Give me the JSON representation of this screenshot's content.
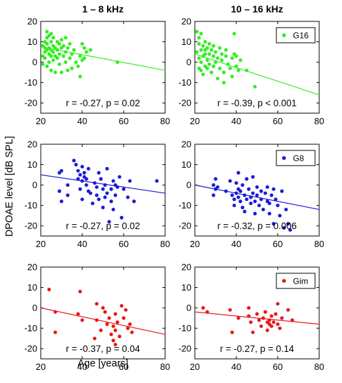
{
  "figure": {
    "ylabel": "DPOAE level [dB SPL]",
    "xlabel": "Age [years]",
    "column_titles": [
      "1 – 8 kHz",
      "10 – 16 kHz"
    ]
  },
  "chart_data": [
    {
      "type": "scatter",
      "row": 0,
      "col": 0,
      "xlim": [
        20,
        80
      ],
      "ylim": [
        -25,
        20
      ],
      "xticks": [
        20,
        40,
        60,
        80
      ],
      "yticks": [
        -20,
        -10,
        0,
        10,
        20
      ],
      "color": "#33ee22",
      "group": "G16",
      "stats": "r = -0.27, p = 0.02",
      "fit": {
        "x": [
          20,
          80
        ],
        "y": [
          7.5,
          -4
        ]
      },
      "series": [
        {
          "name": "G16",
          "x": [
            21,
            21,
            21,
            22,
            22,
            22,
            22,
            23,
            23,
            23,
            23,
            23,
            24,
            24,
            24,
            24,
            25,
            25,
            25,
            25,
            25,
            26,
            26,
            26,
            26,
            27,
            27,
            27,
            28,
            28,
            28,
            29,
            29,
            29,
            30,
            30,
            30,
            31,
            31,
            32,
            32,
            32,
            33,
            33,
            34,
            34,
            35,
            35,
            36,
            37,
            38,
            39,
            39,
            40,
            40,
            41,
            41,
            42,
            44,
            57
          ],
          "y": [
            3,
            8,
            -1,
            7,
            2,
            10,
            5,
            15,
            6,
            -2,
            12,
            9,
            4,
            13,
            0,
            7,
            10,
            3,
            6,
            -4,
            14,
            5,
            1,
            8,
            12,
            7,
            -5,
            3,
            10,
            2,
            6,
            9,
            -1,
            4,
            -5,
            11,
            7,
            3,
            8,
            0,
            12,
            5,
            -4,
            7,
            2,
            9,
            4,
            -3,
            6,
            0,
            -2,
            -7,
            3,
            9,
            1,
            2,
            7,
            5,
            6,
            0
          ]
        }
      ]
    },
    {
      "type": "scatter",
      "row": 0,
      "col": 1,
      "xlim": [
        20,
        80
      ],
      "ylim": [
        -25,
        20
      ],
      "xticks": [
        20,
        40,
        60,
        80
      ],
      "yticks": [
        -20,
        -10,
        0,
        10,
        20
      ],
      "color": "#33ee22",
      "group": "G16",
      "legend": {
        "label": "G16",
        "position": "top-right"
      },
      "stats": "r = -0.39, p < 0.001",
      "fit": {
        "x": [
          20,
          80
        ],
        "y": [
          4,
          -16
        ]
      },
      "series": [
        {
          "name": "G16",
          "x": [
            21,
            21,
            22,
            22,
            22,
            22,
            23,
            23,
            23,
            23,
            24,
            24,
            24,
            25,
            25,
            25,
            25,
            26,
            26,
            26,
            27,
            27,
            27,
            28,
            28,
            29,
            29,
            29,
            30,
            30,
            31,
            31,
            32,
            32,
            33,
            33,
            34,
            34,
            35,
            35,
            36,
            37,
            38,
            38,
            39,
            39,
            40,
            40,
            41,
            42,
            45,
            49
          ],
          "y": [
            15,
            5,
            9,
            2,
            -3,
            12,
            14,
            6,
            0,
            -4,
            8,
            3,
            -6,
            10,
            4,
            -2,
            6,
            7,
            1,
            -3,
            9,
            4,
            -1,
            6,
            -5,
            3,
            8,
            -2,
            5,
            0,
            2,
            -8,
            7,
            -3,
            1,
            4,
            -5,
            -10,
            3,
            6,
            -1,
            -3,
            -7,
            2,
            14,
            4,
            -2,
            3,
            -4,
            1,
            -4,
            -12
          ]
        }
      ]
    },
    {
      "type": "scatter",
      "row": 1,
      "col": 0,
      "xlim": [
        20,
        80
      ],
      "ylim": [
        -25,
        20
      ],
      "xticks": [
        20,
        40,
        60,
        80
      ],
      "yticks": [
        -20,
        -10,
        0,
        10,
        20
      ],
      "color": "#1a1adb",
      "group": "G8",
      "stats": "r = -0.27, p = 0.02",
      "fit": {
        "x": [
          20,
          80
        ],
        "y": [
          5,
          -4
        ]
      },
      "series": [
        {
          "name": "G8",
          "x": [
            29,
            29,
            30,
            30,
            33,
            33,
            36,
            37,
            38,
            38,
            39,
            39,
            40,
            40,
            40,
            41,
            41,
            42,
            42,
            43,
            43,
            44,
            45,
            46,
            47,
            47,
            48,
            48,
            49,
            50,
            50,
            51,
            51,
            52,
            52,
            53,
            54,
            54,
            55,
            55,
            56,
            56,
            57,
            58,
            59,
            60,
            62,
            63,
            65,
            76
          ],
          "y": [
            6,
            -3,
            7,
            -8,
            0,
            -5,
            12,
            10,
            7,
            3,
            5,
            -2,
            2,
            9,
            -7,
            4,
            6,
            3,
            0,
            -3,
            8,
            -4,
            -9,
            1,
            -5,
            -1,
            6,
            -7,
            3,
            -2,
            -11,
            0,
            -6,
            -4,
            8,
            -18,
            -2,
            -8,
            2,
            -12,
            0,
            -5,
            -1,
            4,
            -16,
            -2,
            -6,
            2,
            -8,
            2
          ]
        }
      ]
    },
    {
      "type": "scatter",
      "row": 1,
      "col": 1,
      "xlim": [
        20,
        80
      ],
      "ylim": [
        -25,
        20
      ],
      "xticks": [
        20,
        40,
        60,
        80
      ],
      "yticks": [
        -20,
        -10,
        0,
        10,
        20
      ],
      "color": "#1a1adb",
      "group": "G8",
      "legend": {
        "label": "G8",
        "position": "top-right"
      },
      "stats": "r = -0.32, p = 0.006",
      "fit": {
        "x": [
          20,
          80
        ],
        "y": [
          0,
          -12
        ]
      },
      "series": [
        {
          "name": "G8",
          "x": [
            29,
            29,
            30,
            30,
            31,
            35,
            37,
            38,
            39,
            39,
            40,
            40,
            41,
            41,
            41,
            42,
            42,
            43,
            43,
            44,
            44,
            45,
            45,
            46,
            47,
            47,
            48,
            48,
            49,
            49,
            50,
            50,
            51,
            52,
            52,
            53,
            54,
            55,
            55,
            56,
            56,
            57,
            58,
            58,
            59,
            60,
            61,
            62,
            63,
            64,
            65,
            66
          ],
          "y": [
            0,
            -5,
            -2,
            3,
            -1,
            -3,
            2,
            -5,
            -7,
            -10,
            -4,
            1,
            -6,
            -2,
            6,
            -8,
            -3,
            -11,
            0,
            -5,
            -13,
            -7,
            3,
            -2,
            -6,
            -9,
            4,
            -4,
            -8,
            -14,
            -1,
            -5,
            -10,
            -3,
            -7,
            -12,
            -4,
            -8,
            -1,
            -9,
            -14,
            -5,
            -19,
            -2,
            -7,
            -10,
            -15,
            -3,
            -21,
            -12,
            -19,
            -22
          ]
        }
      ]
    },
    {
      "type": "scatter",
      "row": 2,
      "col": 0,
      "xlim": [
        20,
        80
      ],
      "ylim": [
        -25,
        20
      ],
      "xticks": [
        20,
        40,
        60,
        80
      ],
      "yticks": [
        -20,
        -10,
        0,
        10,
        20
      ],
      "color": "#e8181a",
      "group": "Gim",
      "stats": "r = -0.37, p = 0.04",
      "fit": {
        "x": [
          20,
          80
        ],
        "y": [
          0,
          -13
        ]
      },
      "series": [
        {
          "name": "Gim",
          "x": [
            24,
            27,
            27,
            38,
            39,
            40,
            46,
            47,
            47,
            49,
            50,
            51,
            52,
            53,
            54,
            55,
            55,
            56,
            56,
            56,
            57,
            58,
            59,
            60,
            61,
            62,
            63,
            64
          ],
          "y": [
            9,
            -2,
            -12,
            -3,
            8,
            -6,
            -15,
            2,
            -6,
            -11,
            0,
            -2,
            -8,
            -5,
            -13,
            -9,
            -16,
            -3,
            -11,
            -18,
            -7,
            -14,
            1,
            -5,
            -1,
            -10,
            -8,
            -12
          ]
        }
      ]
    },
    {
      "type": "scatter",
      "row": 2,
      "col": 1,
      "xlim": [
        20,
        80
      ],
      "ylim": [
        -25,
        20
      ],
      "xticks": [
        20,
        40,
        60,
        80
      ],
      "yticks": [
        -20,
        -10,
        0,
        10,
        20
      ],
      "color": "#e8181a",
      "group": "Gim",
      "legend": {
        "label": "Gim",
        "position": "top-right"
      },
      "stats": "r = -0.27, p = 0.14",
      "fit": {
        "x": [
          20,
          80
        ],
        "y": [
          -2,
          -8
        ]
      },
      "series": [
        {
          "name": "Gim",
          "x": [
            24,
            26,
            37,
            38,
            41,
            46,
            46,
            47,
            48,
            50,
            51,
            52,
            53,
            54,
            55,
            55,
            56,
            56,
            57,
            57,
            58,
            59,
            60,
            60,
            61,
            62,
            65,
            67
          ],
          "y": [
            0,
            -2,
            -1,
            -12,
            -5,
            0,
            -4,
            -7,
            -12,
            -3,
            -6,
            -9,
            -5,
            -2,
            -7,
            -11,
            -6,
            -8,
            -4,
            -9,
            -7,
            -3,
            2,
            -8,
            -10,
            -5,
            -1,
            -6
          ]
        }
      ]
    }
  ]
}
